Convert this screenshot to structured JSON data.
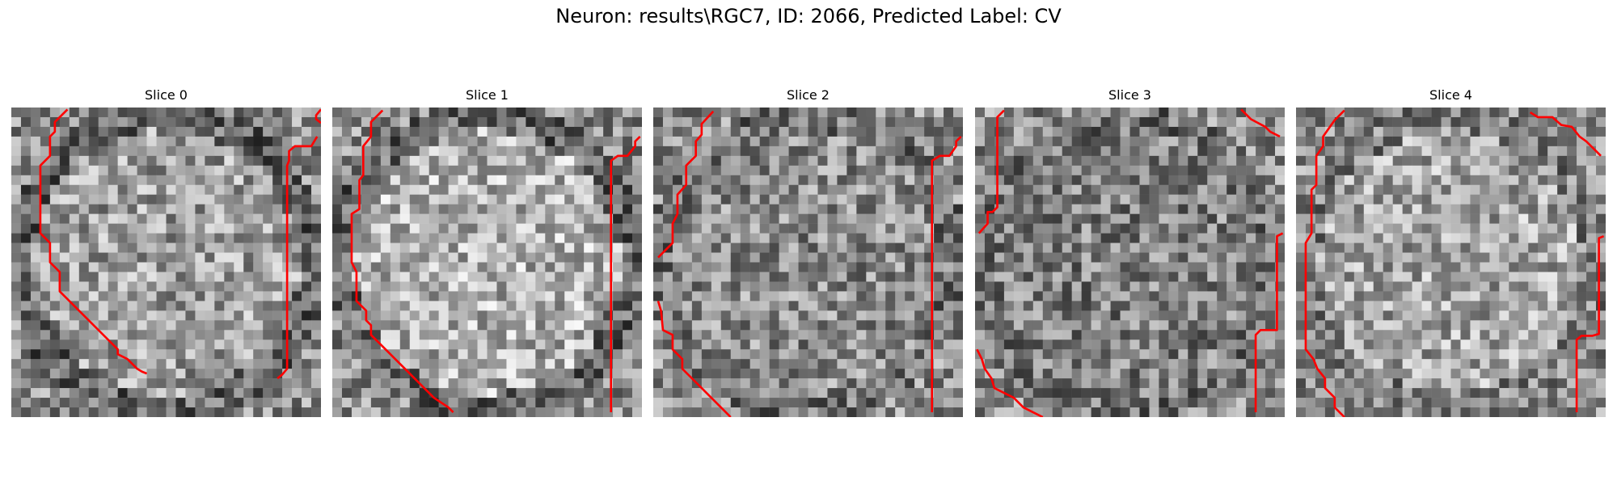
{
  "figure": {
    "title": "Neuron: results\\RGC7, ID: 2066, Predicted Label: CV"
  },
  "colors": {
    "contour": "#ff0000",
    "background": "#ffffff"
  },
  "panels": [
    {
      "title": "Slice 0",
      "seed": 11,
      "center_bright": 0.62,
      "edge_dark": 0.25
    },
    {
      "title": "Slice 1",
      "seed": 23,
      "center_bright": 0.7,
      "edge_dark": 0.25
    },
    {
      "title": "Slice 2",
      "seed": 37,
      "center_bright": 0.55,
      "edge_dark": 0.3
    },
    {
      "title": "Slice 3",
      "seed": 41,
      "center_bright": 0.5,
      "edge_dark": 0.3
    },
    {
      "title": "Slice 4",
      "seed": 53,
      "center_bright": 0.65,
      "edge_dark": 0.35
    }
  ]
}
